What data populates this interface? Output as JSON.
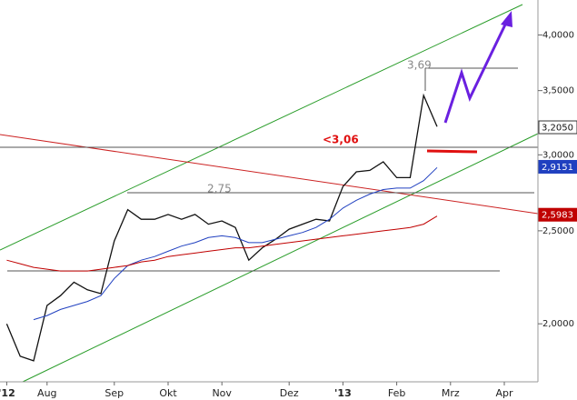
{
  "chart_data": {
    "type": "line",
    "log_scale": true,
    "categories": [
      "'12",
      null,
      null,
      "Aug",
      null,
      null,
      null,
      null,
      "Sep",
      null,
      null,
      null,
      "Okt",
      null,
      null,
      null,
      "Nov",
      null,
      null,
      null,
      null,
      "Dez",
      null,
      null,
      null,
      "'13",
      null,
      null,
      null,
      "Feb",
      null,
      null,
      null,
      "Mrz",
      null,
      null,
      null,
      "Apr",
      null,
      null
    ],
    "series": [
      {
        "color": "#111111",
        "values": [
          2.0,
          1.85,
          1.83,
          2.09,
          2.14,
          2.21,
          2.17,
          2.15,
          2.44,
          2.63,
          2.57,
          2.57,
          2.6,
          2.57,
          2.6,
          2.54,
          2.56,
          2.52,
          2.33,
          2.4,
          2.45,
          2.51,
          2.54,
          2.57,
          2.56,
          2.78,
          2.88,
          2.89,
          2.95,
          2.84,
          2.84,
          3.46,
          3.21,
          null,
          null,
          null,
          null,
          null,
          null,
          null
        ]
      },
      {
        "color": "#2040c0",
        "values": [
          null,
          null,
          2.02,
          2.04,
          2.07,
          2.09,
          2.11,
          2.14,
          2.23,
          2.3,
          2.33,
          2.35,
          2.38,
          2.41,
          2.43,
          2.46,
          2.47,
          2.46,
          2.43,
          2.43,
          2.45,
          2.47,
          2.49,
          2.52,
          2.57,
          2.64,
          2.69,
          2.73,
          2.76,
          2.77,
          2.77,
          2.82,
          2.91,
          null,
          null,
          null,
          null,
          null,
          null,
          null
        ]
      },
      {
        "color": "#c00000",
        "values": [
          2.33,
          2.31,
          2.29,
          2.28,
          2.27,
          2.27,
          2.27,
          2.28,
          2.29,
          2.3,
          2.32,
          2.33,
          2.35,
          2.36,
          2.37,
          2.38,
          2.39,
          2.4,
          2.4,
          2.41,
          2.42,
          2.43,
          2.44,
          2.45,
          2.46,
          2.47,
          2.48,
          2.49,
          2.5,
          2.51,
          2.52,
          2.54,
          2.59,
          null,
          null,
          null,
          null,
          null,
          null,
          null
        ]
      }
    ],
    "ylim": [
      1.74,
      4.35
    ],
    "yticks": [
      {
        "value": 2,
        "label": "2,0000"
      },
      {
        "value": 2.5,
        "label": "2,5000"
      },
      {
        "value": 3,
        "label": "3,0000"
      },
      {
        "value": 3.5,
        "label": "3,5000"
      },
      {
        "value": 4,
        "label": "4,0000"
      }
    ],
    "last_values": [
      {
        "value": 3.205,
        "label": "3,2050",
        "color": "#ffffff"
      },
      {
        "value": 2.9151,
        "label": "2,9151",
        "color": "#2040c0"
      },
      {
        "value": 2.5983,
        "label": "2,5983",
        "color": "#c00000"
      }
    ],
    "annotations": [
      "3,69",
      "2,75",
      "<3,06"
    ]
  }
}
